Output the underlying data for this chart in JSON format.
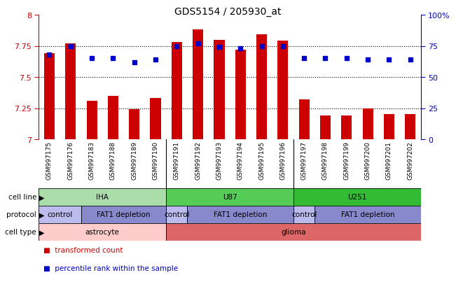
{
  "title": "GDS5154 / 205930_at",
  "samples": [
    "GSM997175",
    "GSM997176",
    "GSM997183",
    "GSM997188",
    "GSM997189",
    "GSM997190",
    "GSM997191",
    "GSM997192",
    "GSM997193",
    "GSM997194",
    "GSM997195",
    "GSM997196",
    "GSM997197",
    "GSM997198",
    "GSM997199",
    "GSM997200",
    "GSM997201",
    "GSM997202"
  ],
  "bar_values": [
    7.69,
    7.77,
    7.31,
    7.35,
    7.24,
    7.33,
    7.78,
    7.88,
    7.8,
    7.72,
    7.84,
    7.79,
    7.32,
    7.19,
    7.19,
    7.25,
    7.2,
    7.2
  ],
  "dot_values": [
    68,
    75,
    65,
    65,
    62,
    64,
    75,
    77,
    74,
    73,
    75,
    75,
    65,
    65,
    65,
    64,
    64,
    64
  ],
  "ylim": [
    7.0,
    8.0
  ],
  "yticks": [
    7.0,
    7.25,
    7.5,
    7.75,
    8.0
  ],
  "ytick_labels": [
    "7",
    "7.25",
    "7.5",
    "7.75",
    "8"
  ],
  "right_yticks": [
    0,
    25,
    50,
    75,
    100
  ],
  "right_ytick_labels": [
    "0",
    "25",
    "50",
    "75",
    "100%"
  ],
  "hlines": [
    7.25,
    7.5,
    7.75
  ],
  "bar_color": "#cc0000",
  "dot_color": "#0000cc",
  "cell_line_row": {
    "label": "cell line",
    "groups": [
      {
        "text": "IHA",
        "start": 0,
        "end": 6,
        "color": "#aaddaa"
      },
      {
        "text": "U87",
        "start": 6,
        "end": 12,
        "color": "#55cc55"
      },
      {
        "text": "U251",
        "start": 12,
        "end": 18,
        "color": "#33bb33"
      }
    ]
  },
  "protocol_row": {
    "label": "protocol",
    "groups": [
      {
        "text": "control",
        "start": 0,
        "end": 2,
        "color": "#bbbbee"
      },
      {
        "text": "FAT1 depletion",
        "start": 2,
        "end": 6,
        "color": "#8888cc"
      },
      {
        "text": "control",
        "start": 6,
        "end": 7,
        "color": "#bbbbee"
      },
      {
        "text": "FAT1 depletion",
        "start": 7,
        "end": 12,
        "color": "#8888cc"
      },
      {
        "text": "control",
        "start": 12,
        "end": 13,
        "color": "#bbbbee"
      },
      {
        "text": "FAT1 depletion",
        "start": 13,
        "end": 18,
        "color": "#8888cc"
      }
    ]
  },
  "cell_type_row": {
    "label": "cell type",
    "groups": [
      {
        "text": "astrocyte",
        "start": 0,
        "end": 6,
        "color": "#ffcccc"
      },
      {
        "text": "glioma",
        "start": 6,
        "end": 18,
        "color": "#dd6666"
      }
    ]
  },
  "legend": [
    {
      "color": "#cc0000",
      "label": "transformed count"
    },
    {
      "color": "#0000cc",
      "label": "percentile rank within the sample"
    }
  ],
  "group_seps": [
    5.5,
    11.5
  ],
  "tick_area_color": "#cccccc"
}
